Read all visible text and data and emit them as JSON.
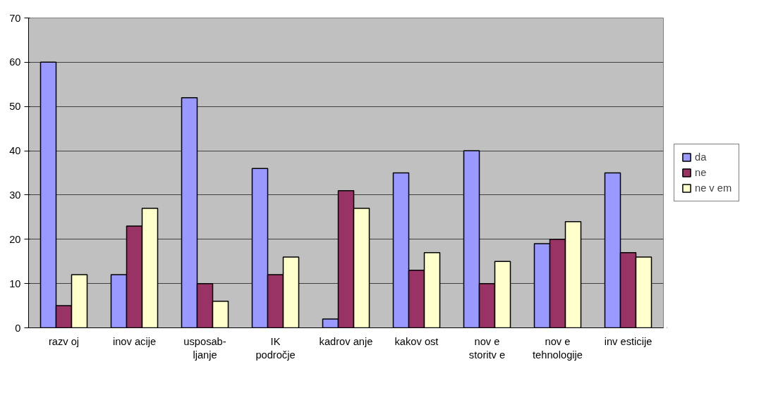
{
  "chart_data": {
    "type": "bar",
    "categories": [
      "razv oj",
      "inov acije",
      "usposab-\nljanje",
      "IK\npodročje",
      "kadrov anje",
      "kakov ost",
      "nov e\nstoritv e",
      "nov e\ntehnologije",
      "inv esticije"
    ],
    "series": [
      {
        "name": "da",
        "color": "#9999ff",
        "values": [
          60,
          12,
          52,
          36,
          2,
          35,
          40,
          19,
          35
        ]
      },
      {
        "name": "ne",
        "color": "#993366",
        "values": [
          5,
          23,
          10,
          12,
          31,
          13,
          10,
          20,
          17
        ]
      },
      {
        "name": "ne v em",
        "color": "#ffffcc",
        "values": [
          12,
          27,
          6,
          16,
          27,
          17,
          15,
          24,
          16
        ]
      }
    ],
    "ylim": [
      0,
      70
    ],
    "yticks": [
      0,
      10,
      20,
      30,
      40,
      50,
      60,
      70
    ],
    "grid": "y",
    "legend": "right"
  }
}
